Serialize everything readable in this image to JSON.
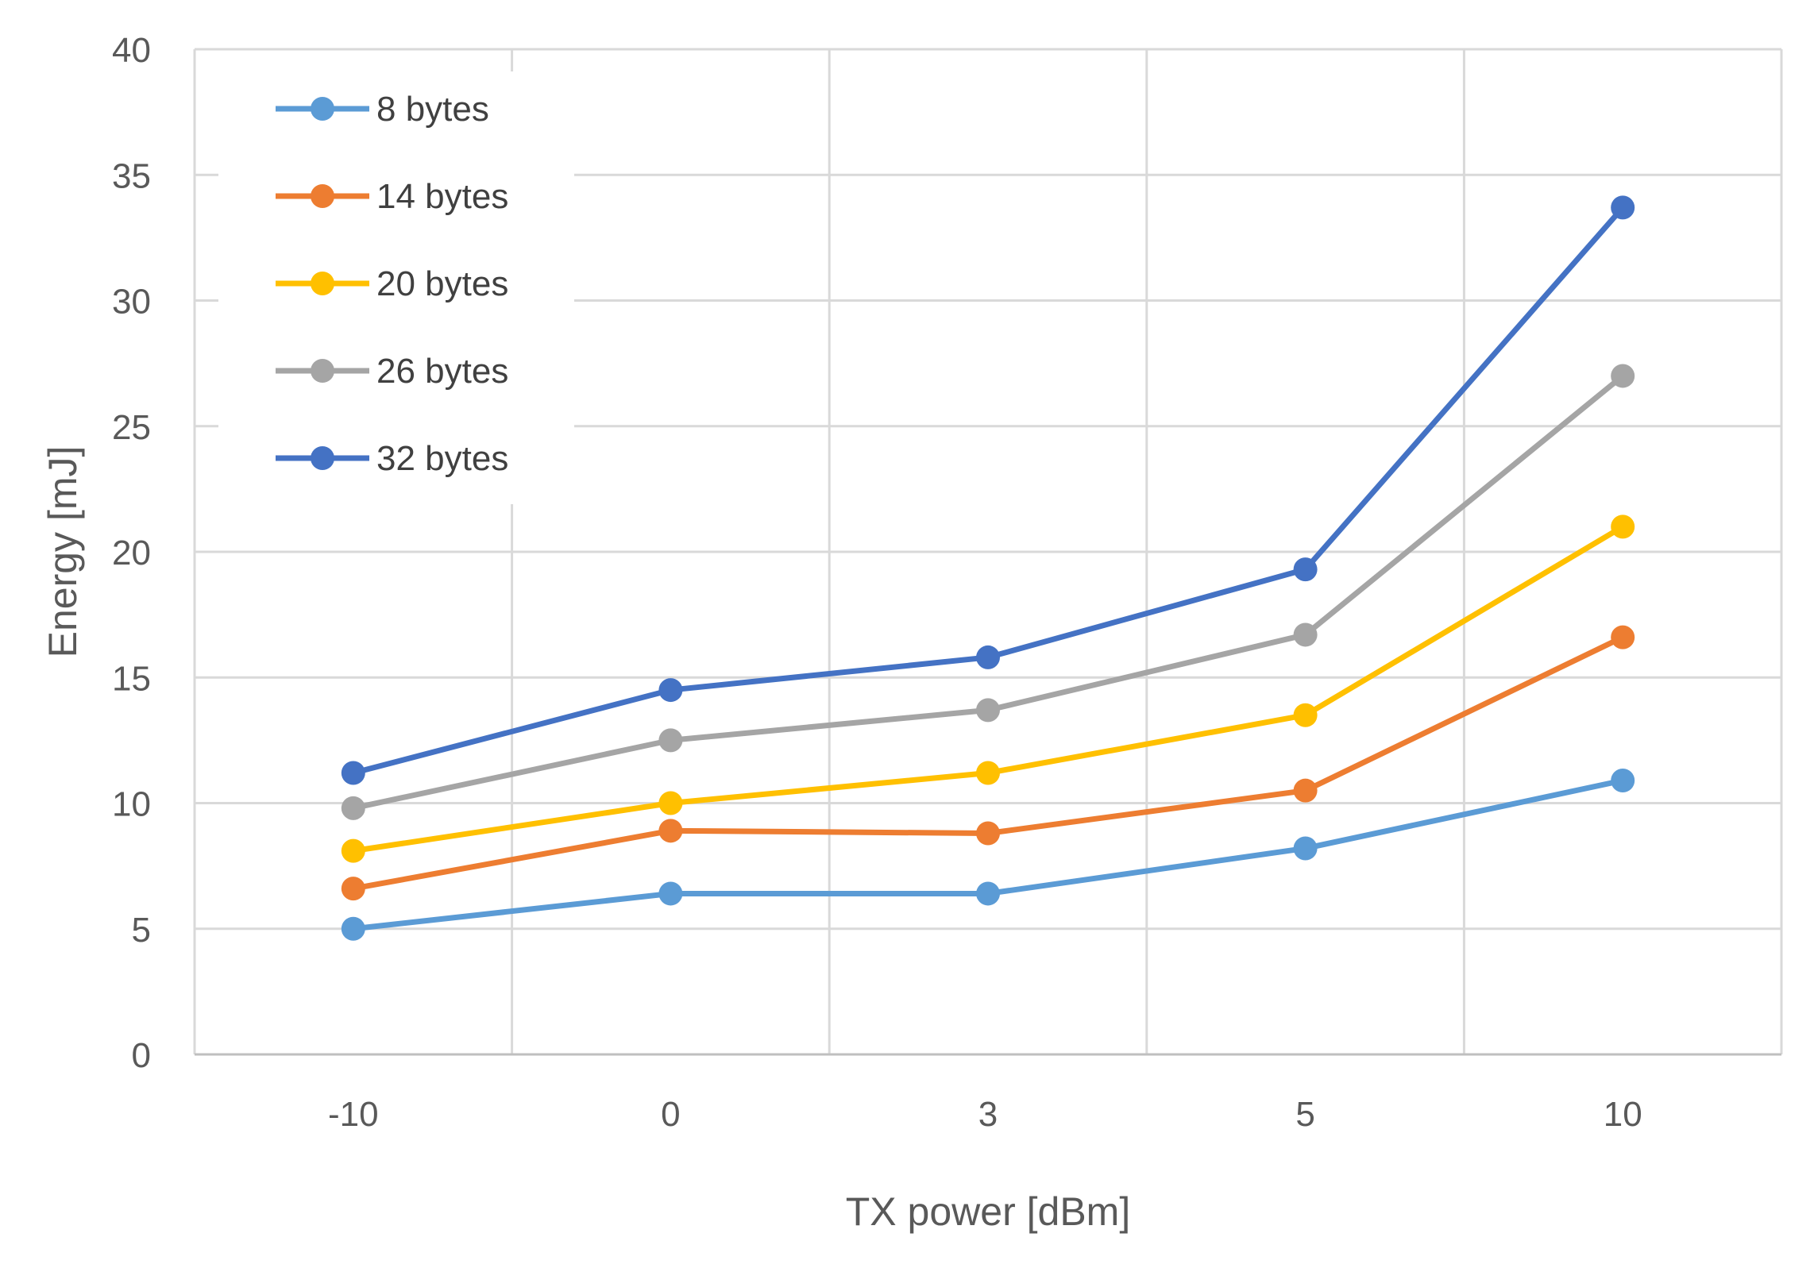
{
  "chart_data": {
    "type": "line",
    "title": "",
    "xlabel": "TX power [dBm]",
    "ylabel": "Energy [mJ]",
    "categories": [
      "-10",
      "0",
      "3",
      "5",
      "10"
    ],
    "ylim": [
      0,
      40
    ],
    "yticks": [
      "0",
      "5",
      "10",
      "15",
      "20",
      "25",
      "30",
      "35",
      "40"
    ],
    "grid": true,
    "legend_position": "top-left",
    "series": [
      {
        "name": "8 bytes",
        "color": "#5B9BD5",
        "values": [
          5.0,
          6.4,
          6.4,
          8.2,
          10.9
        ]
      },
      {
        "name": "14 bytes",
        "color": "#ED7D31",
        "values": [
          6.6,
          8.9,
          8.8,
          10.5,
          16.6
        ]
      },
      {
        "name": "20 bytes",
        "color": "#FFC000",
        "values": [
          8.1,
          10.0,
          11.2,
          13.5,
          21.0
        ]
      },
      {
        "name": "26 bytes",
        "color": "#A5A5A5",
        "values": [
          9.8,
          12.5,
          13.7,
          16.7,
          27.0
        ]
      },
      {
        "name": "32 bytes",
        "color": "#4472C4",
        "values": [
          11.2,
          14.5,
          15.8,
          19.3,
          33.7
        ]
      }
    ]
  }
}
